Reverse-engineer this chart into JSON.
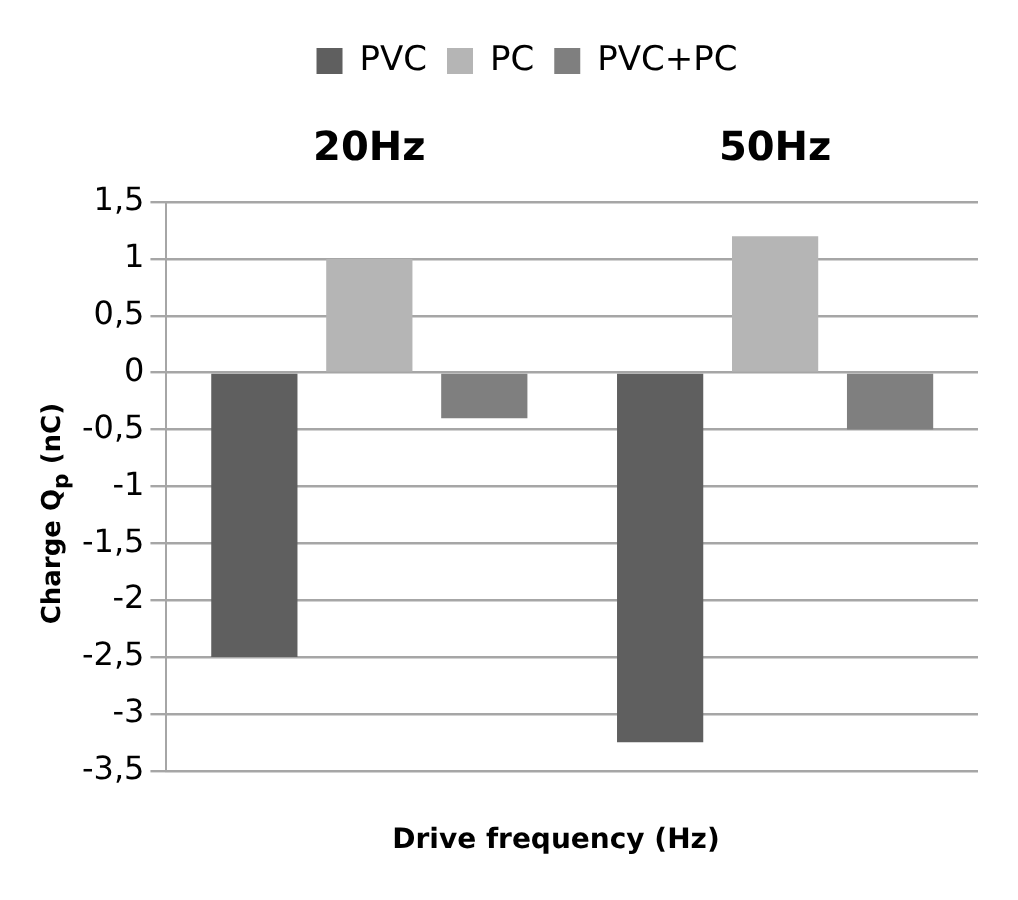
{
  "chart_data": {
    "type": "bar",
    "categories": [
      "20Hz",
      "50Hz"
    ],
    "series": [
      {
        "name": "PVC",
        "color": "#5f5f5f",
        "values": [
          -2.5,
          -3.25
        ]
      },
      {
        "name": "PC",
        "color": "#b5b5b5",
        "values": [
          1.0,
          1.2
        ]
      },
      {
        "name": "PVC+PC",
        "color": "#7f7f7f",
        "values": [
          -0.4,
          -0.5
        ]
      }
    ],
    "xlabel": "Drive frequency (Hz)",
    "ylabel": "Charge Q$_{p}$ (nC)",
    "ylim": [
      -3.5,
      1.5
    ],
    "yticks": [
      {
        "value": 1.5,
        "label": "1,5"
      },
      1,
      {
        "value": 0.5,
        "label": "0,5"
      },
      0,
      {
        "value": -0.5,
        "label": "-0,5"
      },
      -1,
      {
        "value": -1.5,
        "label": "-1,5"
      },
      -2,
      {
        "value": -2.5,
        "label": "-2,5"
      },
      -3,
      {
        "value": -3.5,
        "label": "-3,5"
      }
    ],
    "grid": "y",
    "legend": "top"
  }
}
